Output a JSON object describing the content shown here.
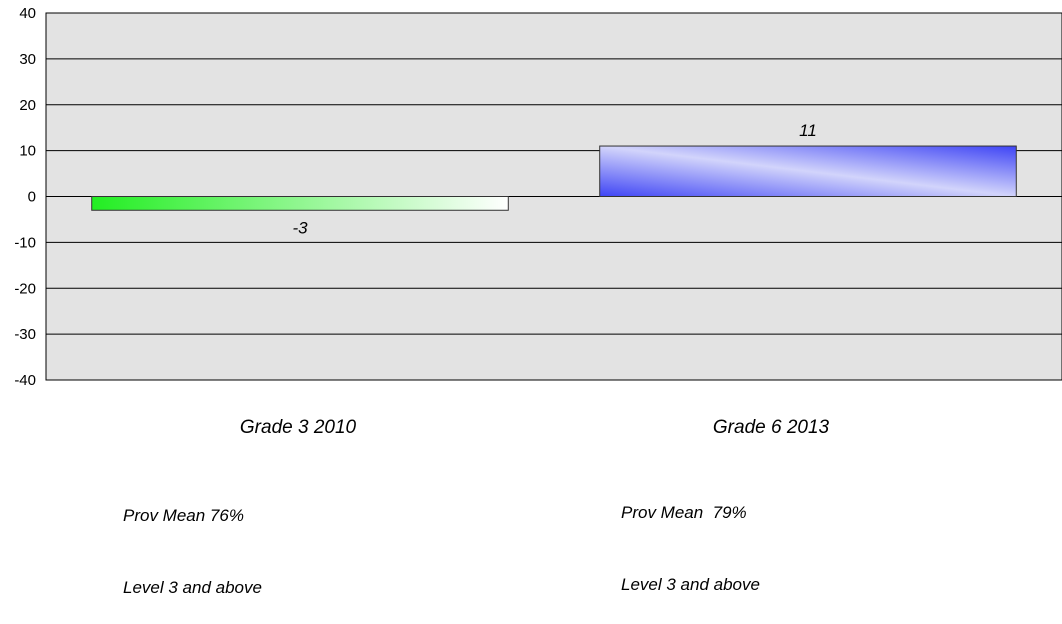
{
  "chart_data": {
    "type": "bar",
    "categories": [
      "Grade 3 2010",
      "Grade 6 2013"
    ],
    "values": [
      -3,
      11
    ],
    "data_labels": [
      "-3",
      "11"
    ],
    "ylim": [
      -40,
      40
    ],
    "yticks": [
      40,
      30,
      20,
      10,
      0,
      -10,
      -20,
      -30,
      -40
    ],
    "ytick_labels": [
      "40",
      "30",
      "20",
      "10",
      "0",
      "-10",
      "-20",
      "-30",
      "-40"
    ],
    "grid": true,
    "legend": "none",
    "title": "",
    "xlabel": "",
    "ylabel": "",
    "bar_colors": [
      "#22ee22",
      "#4a4ef5"
    ],
    "plot_background": "#e3e3e3",
    "category_notes": [
      [
        "Prov Mean 76%",
        "Level 3 and above"
      ],
      [
        "Prov Mean  79%",
        "Level 3 and above"
      ]
    ]
  }
}
